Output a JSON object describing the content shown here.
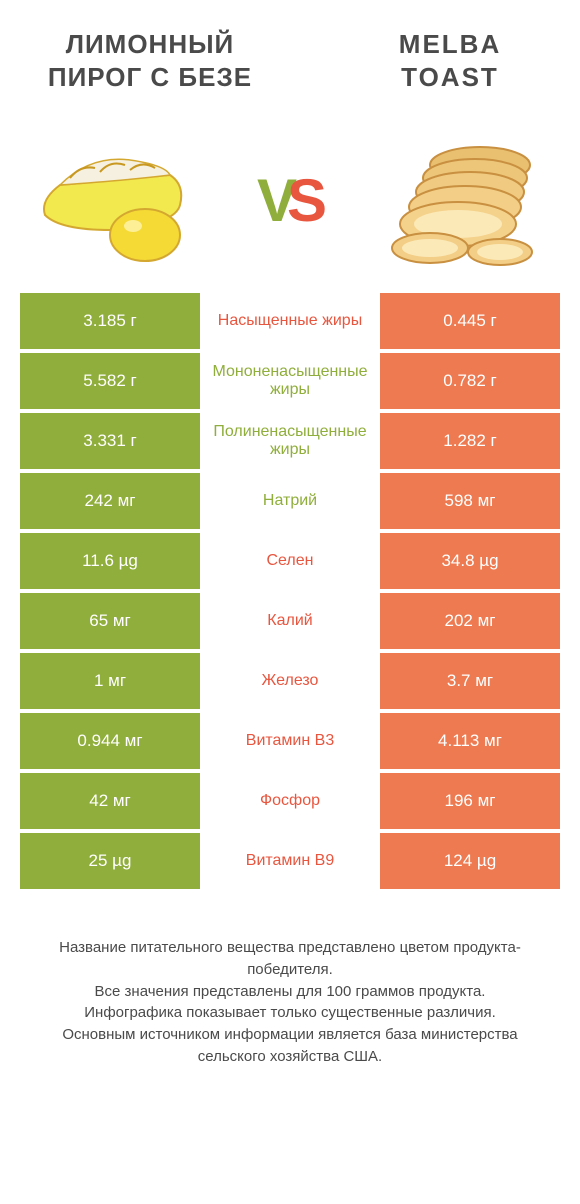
{
  "left_title": "ЛИМОННЫЙ ПИРОГ С БЕЗЕ",
  "right_title": "MELBA TOAST",
  "vs": {
    "v": "V",
    "s": "S"
  },
  "colors": {
    "green": "#8fae3b",
    "orange": "#ed7a50",
    "orange_text": "#e8563f"
  },
  "rows": [
    {
      "left": "3.185 г",
      "mid": "Насыщенные жиры",
      "right": "0.445 г",
      "winner": "left",
      "mid_color": "orange"
    },
    {
      "left": "5.582 г",
      "mid": "Мононенасыщенные жиры",
      "right": "0.782 г",
      "winner": "left",
      "mid_color": "green"
    },
    {
      "left": "3.331 г",
      "mid": "Полиненасыщенные жиры",
      "right": "1.282 г",
      "winner": "left",
      "mid_color": "green"
    },
    {
      "left": "242 мг",
      "mid": "Натрий",
      "right": "598 мг",
      "winner": "left",
      "mid_color": "green"
    },
    {
      "left": "11.6 µg",
      "mid": "Селен",
      "right": "34.8 µg",
      "winner": "right",
      "mid_color": "orange"
    },
    {
      "left": "65 мг",
      "mid": "Калий",
      "right": "202 мг",
      "winner": "right",
      "mid_color": "orange"
    },
    {
      "left": "1 мг",
      "mid": "Железо",
      "right": "3.7 мг",
      "winner": "right",
      "mid_color": "orange"
    },
    {
      "left": "0.944 мг",
      "mid": "Витамин B3",
      "right": "4.113 мг",
      "winner": "right",
      "mid_color": "orange"
    },
    {
      "left": "42 мг",
      "mid": "Фосфор",
      "right": "196 мг",
      "winner": "right",
      "mid_color": "orange"
    },
    {
      "left": "25 µg",
      "mid": "Витамин B9",
      "right": "124 µg",
      "winner": "right",
      "mid_color": "orange"
    }
  ],
  "footer_lines": [
    "Название питательного вещества представлено цветом продукта-победителя.",
    "Все значения представлены для 100 граммов продукта.",
    "Инфографика показывает только существенные различия.",
    "Основным источником информации является база министерства сельского хозяйства США."
  ]
}
